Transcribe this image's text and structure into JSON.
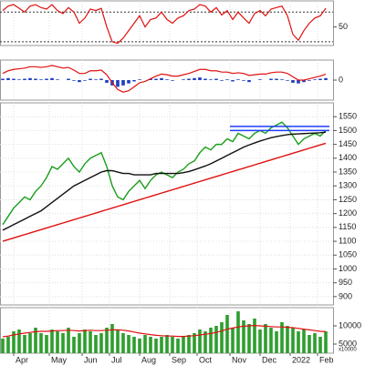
{
  "chart_data": [
    {
      "type": "line",
      "ylim": [
        25,
        85
      ],
      "yticks": [
        50
      ],
      "levels": [
        70,
        30
      ],
      "series": [
        {
          "kind": "line",
          "color": "#e01010",
          "values": [
            72,
            78,
            80,
            75,
            70,
            78,
            80,
            76,
            74,
            80,
            72,
            68,
            76,
            70,
            55,
            62,
            74,
            72,
            75,
            50,
            30,
            28,
            35,
            45,
            55,
            65,
            50,
            60,
            62,
            70,
            60,
            55,
            62,
            65,
            72,
            74,
            80,
            78,
            70,
            76,
            66,
            72,
            60,
            70,
            62,
            55,
            68,
            72,
            65,
            74,
            76,
            78,
            65,
            40,
            32,
            45,
            55,
            62,
            65,
            75
          ]
        }
      ]
    },
    {
      "type": "combo",
      "ylim": [
        -30,
        30
      ],
      "yticks": [
        0
      ],
      "series": [
        {
          "kind": "bar",
          "color": "#1f3fbf",
          "values": [
            2,
            3,
            2,
            1,
            2,
            3,
            2,
            1,
            2,
            3,
            1,
            0,
            2,
            -1,
            -3,
            -1,
            2,
            1,
            2,
            -4,
            -8,
            -10,
            -8,
            -5,
            -2,
            1,
            0,
            2,
            2,
            3,
            1,
            -1,
            0,
            1,
            2,
            3,
            4,
            2,
            1,
            2,
            -1,
            1,
            -2,
            1,
            -1,
            -3,
            0,
            1,
            0,
            2,
            2,
            1,
            -1,
            -4,
            -5,
            -3,
            -1,
            1,
            2,
            3
          ]
        },
        {
          "kind": "line",
          "color": "#e01010",
          "values": [
            10,
            14,
            16,
            17,
            18,
            20,
            20,
            19,
            20,
            22,
            20,
            18,
            19,
            15,
            10,
            10,
            14,
            14,
            15,
            8,
            -4,
            -14,
            -18,
            -16,
            -10,
            -4,
            -2,
            2,
            6,
            9,
            8,
            6,
            6,
            8,
            10,
            13,
            16,
            16,
            14,
            14,
            12,
            12,
            10,
            11,
            10,
            7,
            8,
            9,
            9,
            11,
            12,
            12,
            10,
            5,
            0,
            0,
            2,
            4,
            6,
            9
          ]
        }
      ]
    },
    {
      "type": "line",
      "ylim": [
        870,
        1600
      ],
      "yticks": [
        900,
        950,
        1000,
        1050,
        1100,
        1150,
        1200,
        1250,
        1300,
        1350,
        1400,
        1450,
        1500,
        1550
      ],
      "grid": true,
      "hlines": [
        1515,
        1500
      ],
      "hline_from": 41.5,
      "hline_color": "#1e3cff",
      "series": [
        {
          "kind": "line",
          "color": "#1a9e1a",
          "values": [
            1160,
            1190,
            1220,
            1240,
            1260,
            1250,
            1280,
            1300,
            1330,
            1370,
            1360,
            1380,
            1400,
            1370,
            1350,
            1380,
            1400,
            1410,
            1420,
            1370,
            1300,
            1260,
            1250,
            1280,
            1300,
            1320,
            1290,
            1320,
            1340,
            1350,
            1340,
            1330,
            1350,
            1360,
            1380,
            1390,
            1420,
            1440,
            1430,
            1450,
            1450,
            1470,
            1460,
            1490,
            1480,
            1470,
            1490,
            1500,
            1490,
            1510,
            1520,
            1530,
            1510,
            1480,
            1450,
            1470,
            1480,
            1490,
            1480,
            1500
          ]
        },
        {
          "kind": "line",
          "color": "#111111",
          "values": [
            1140,
            1150,
            1160,
            1170,
            1180,
            1190,
            1200,
            1210,
            1225,
            1240,
            1255,
            1270,
            1285,
            1300,
            1310,
            1320,
            1330,
            1340,
            1350,
            1355,
            1355,
            1350,
            1345,
            1345,
            1340,
            1340,
            1340,
            1340,
            1345,
            1345,
            1345,
            1345,
            1345,
            1348,
            1352,
            1358,
            1365,
            1372,
            1380,
            1390,
            1400,
            1410,
            1420,
            1430,
            1440,
            1448,
            1455,
            1462,
            1468,
            1474,
            1478,
            1482,
            1485,
            1487,
            1488,
            1489,
            1490,
            1491,
            1492,
            1494
          ]
        },
        {
          "kind": "line",
          "color": "#e01010",
          "values": [
            1100,
            1106,
            1112,
            1118,
            1124,
            1130,
            1136,
            1142,
            1148,
            1154,
            1160,
            1166,
            1172,
            1178,
            1184,
            1190,
            1196,
            1202,
            1208,
            1214,
            1220,
            1226,
            1232,
            1238,
            1244,
            1250,
            1256,
            1262,
            1268,
            1274,
            1280,
            1286,
            1292,
            1298,
            1304,
            1310,
            1316,
            1322,
            1328,
            1334,
            1340,
            1346,
            1352,
            1358,
            1364,
            1370,
            1376,
            1382,
            1388,
            1394,
            1400,
            1406,
            1412,
            1418,
            1424,
            1430,
            1436,
            1442,
            1448,
            1454
          ]
        }
      ]
    },
    {
      "type": "combo",
      "ylim": [
        2500,
        15000
      ],
      "yticks": [
        5000,
        10000
      ],
      "unit_label": "x10000",
      "xlim": [
        0,
        59
      ],
      "xticks": [
        {
          "value": 2,
          "label": "Apr"
        },
        {
          "value": 8.5,
          "label": "May"
        },
        {
          "value": 14.5,
          "label": "Jun"
        },
        {
          "value": 19.5,
          "label": "Jul"
        },
        {
          "value": 25,
          "label": "Aug"
        },
        {
          "value": 30.5,
          "label": "Sep"
        },
        {
          "value": 35.5,
          "label": "Oct"
        },
        {
          "value": 41.5,
          "label": "Nov"
        },
        {
          "value": 47,
          "label": "Dec"
        },
        {
          "value": 52.5,
          "label": "2022"
        },
        {
          "value": 57.5,
          "label": "Feb"
        }
      ],
      "series": [
        {
          "kind": "bar",
          "color": "#2e9e2e",
          "values": [
            6500,
            7000,
            8500,
            9000,
            7500,
            8000,
            9500,
            8000,
            7500,
            9000,
            8500,
            8000,
            9500,
            7000,
            8000,
            9000,
            8500,
            7500,
            8000,
            9500,
            10500,
            9000,
            8000,
            7500,
            7000,
            6500,
            7500,
            7000,
            6500,
            7000,
            7500,
            7000,
            6500,
            7000,
            7500,
            8000,
            9000,
            8500,
            9500,
            10000,
            11000,
            13000,
            9500,
            14000,
            11500,
            10500,
            12000,
            9000,
            10500,
            9500,
            8500,
            11000,
            10000,
            9500,
            8500,
            9000,
            7500,
            8000,
            7000,
            8500
          ]
        },
        {
          "kind": "line",
          "color": "#e01010",
          "values": [
            7000,
            7200,
            7500,
            7800,
            8000,
            8200,
            8400,
            8500,
            8500,
            8600,
            8700,
            8700,
            8800,
            8700,
            8600,
            8700,
            8800,
            8700,
            8700,
            8800,
            8900,
            8900,
            8800,
            8600,
            8300,
            8000,
            7800,
            7600,
            7400,
            7300,
            7200,
            7200,
            7100,
            7100,
            7200,
            7300,
            7500,
            7700,
            7900,
            8200,
            8600,
            9100,
            9400,
            9700,
            9900,
            10000,
            10100,
            10000,
            9900,
            9800,
            9700,
            9700,
            9600,
            9500,
            9300,
            9100,
            8900,
            8700,
            8500,
            8400
          ]
        }
      ]
    }
  ]
}
